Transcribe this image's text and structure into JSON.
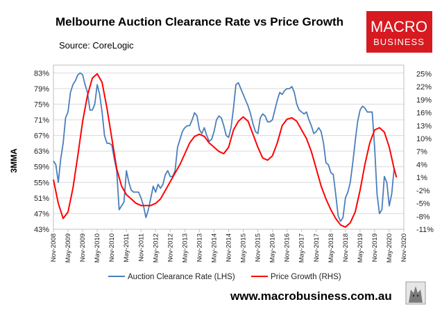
{
  "header": {
    "title": "Melbourne Auction Clearance Rate vs Price Growth",
    "source": "Source: CoreLogic",
    "logo_line1": "MACRO",
    "logo_line2": "BUSINESS",
    "logo_color": "#d71920"
  },
  "footer": {
    "url": "www.macrobusiness.com.au",
    "badge_icon": "wolf-icon"
  },
  "chart_data": {
    "type": "line",
    "ylabel": "3MMA",
    "y_left": {
      "range": [
        43,
        85
      ],
      "ticks": [
        "83%",
        "79%",
        "75%",
        "71%",
        "67%",
        "63%",
        "59%",
        "55%",
        "51%",
        "47%",
        "43%"
      ],
      "tick_values": [
        83,
        79,
        75,
        71,
        67,
        63,
        59,
        55,
        51,
        47,
        43
      ]
    },
    "y_right": {
      "range": [
        -11,
        27
      ],
      "ticks": [
        "25%",
        "22%",
        "19%",
        "16%",
        "13%",
        "10%",
        "7%",
        "4%",
        "1%",
        "-2%",
        "-5%",
        "-8%",
        "-11%"
      ],
      "tick_values": [
        25,
        22,
        19,
        16,
        13,
        10,
        7,
        4,
        1,
        -2,
        -5,
        -8,
        -11
      ]
    },
    "x_ticks": [
      "Nov-2008",
      "May-2009",
      "Nov-2009",
      "May-2010",
      "Nov-2010",
      "May-2011",
      "Nov-2011",
      "May-2012",
      "Nov-2012",
      "May-2013",
      "Nov-2013",
      "May-2014",
      "Nov-2014",
      "May-2015",
      "Nov-2015",
      "May-2016",
      "Nov-2016",
      "May-2017",
      "Nov-2017",
      "May-2018",
      "Nov-2018",
      "May-2019",
      "Nov-2019",
      "May-2020",
      "Nov-2020"
    ],
    "x_range": [
      0,
      144
    ],
    "series": [
      {
        "name": "Auction Clearance Rate (LHS)",
        "axis": "left",
        "color": "#4a7ebb",
        "points": [
          [
            0,
            60.5
          ],
          [
            1,
            59.5
          ],
          [
            2,
            55
          ],
          [
            3,
            61
          ],
          [
            4,
            65
          ],
          [
            5,
            71.5
          ],
          [
            6,
            73
          ],
          [
            7,
            78
          ],
          [
            8,
            80
          ],
          [
            9,
            81
          ],
          [
            10,
            82.5
          ],
          [
            11,
            83
          ],
          [
            12,
            82.5
          ],
          [
            13,
            80
          ],
          [
            14,
            78
          ],
          [
            15,
            73.5
          ],
          [
            16,
            73.5
          ],
          [
            17,
            75
          ],
          [
            18,
            80
          ],
          [
            19,
            77.5
          ],
          [
            20,
            73
          ],
          [
            21,
            67
          ],
          [
            22,
            65
          ],
          [
            23,
            65
          ],
          [
            24,
            64.5
          ],
          [
            25,
            61
          ],
          [
            26,
            58
          ],
          [
            27,
            48
          ],
          [
            28,
            49
          ],
          [
            29,
            50
          ],
          [
            30,
            58
          ],
          [
            31,
            55
          ],
          [
            32,
            53
          ],
          [
            33,
            52.5
          ],
          [
            34,
            52.5
          ],
          [
            35,
            52.5
          ],
          [
            36,
            51
          ],
          [
            37,
            49
          ],
          [
            38,
            46
          ],
          [
            39,
            48
          ],
          [
            40,
            51
          ],
          [
            41,
            54
          ],
          [
            42,
            52.5
          ],
          [
            43,
            54.5
          ],
          [
            44,
            53.5
          ],
          [
            45,
            54.5
          ],
          [
            46,
            57
          ],
          [
            47,
            58
          ],
          [
            48,
            56.5
          ],
          [
            49,
            56.5
          ],
          [
            50,
            58
          ],
          [
            51,
            64
          ],
          [
            52,
            66
          ],
          [
            53,
            68
          ],
          [
            54,
            69
          ],
          [
            55,
            69.5
          ],
          [
            56,
            69.5
          ],
          [
            57,
            71
          ],
          [
            58,
            72.8
          ],
          [
            59,
            72
          ],
          [
            60,
            68.5
          ],
          [
            61,
            67.5
          ],
          [
            62,
            69
          ],
          [
            63,
            67
          ],
          [
            64,
            65.5
          ],
          [
            65,
            66
          ],
          [
            66,
            68
          ],
          [
            67,
            71
          ],
          [
            68,
            72
          ],
          [
            69,
            71.5
          ],
          [
            70,
            69.5
          ],
          [
            71,
            67
          ],
          [
            72,
            66.5
          ],
          [
            73,
            69
          ],
          [
            74,
            74
          ],
          [
            75,
            80
          ],
          [
            76,
            80.5
          ],
          [
            77,
            79
          ],
          [
            78,
            77.5
          ],
          [
            79,
            76
          ],
          [
            80,
            74.5
          ],
          [
            81,
            72.5
          ],
          [
            82,
            70
          ],
          [
            83,
            68
          ],
          [
            84,
            67.5
          ],
          [
            85,
            71.5
          ],
          [
            86,
            72.5
          ],
          [
            87,
            72
          ],
          [
            88,
            70.5
          ],
          [
            89,
            70.5
          ],
          [
            90,
            71
          ],
          [
            91,
            73.5
          ],
          [
            92,
            76
          ],
          [
            93,
            78
          ],
          [
            94,
            77.5
          ],
          [
            95,
            78.5
          ],
          [
            96,
            79
          ],
          [
            97,
            79
          ],
          [
            98,
            79.5
          ],
          [
            99,
            78
          ],
          [
            100,
            75
          ],
          [
            101,
            73.5
          ],
          [
            102,
            73
          ],
          [
            103,
            72.5
          ],
          [
            104,
            73
          ],
          [
            105,
            71
          ],
          [
            106,
            69.5
          ],
          [
            107,
            67.5
          ],
          [
            108,
            68
          ],
          [
            109,
            69
          ],
          [
            110,
            68
          ],
          [
            111,
            65
          ],
          [
            112,
            60
          ],
          [
            113,
            59.5
          ],
          [
            114,
            57.5
          ],
          [
            115,
            57
          ],
          [
            116,
            52
          ],
          [
            117,
            46.5
          ],
          [
            118,
            45
          ],
          [
            119,
            46
          ],
          [
            120,
            51
          ],
          [
            121,
            52.5
          ],
          [
            122,
            55
          ],
          [
            123,
            60
          ],
          [
            124,
            65.5
          ],
          [
            125,
            70.5
          ],
          [
            126,
            73.5
          ],
          [
            127,
            74.5
          ],
          [
            128,
            74
          ],
          [
            129,
            73
          ],
          [
            130,
            73
          ],
          [
            131,
            73
          ],
          [
            132,
            64
          ],
          [
            133,
            52
          ],
          [
            134,
            47
          ],
          [
            135,
            48
          ],
          [
            136,
            56.5
          ],
          [
            137,
            55
          ],
          [
            138,
            49
          ],
          [
            139,
            52
          ],
          [
            140,
            58.5
          ]
        ]
      },
      {
        "name": "Price Growth (RHS)",
        "axis": "right",
        "color": "#ff0000",
        "points": [
          [
            0,
            0.5
          ],
          [
            2,
            -5
          ],
          [
            4,
            -8.5
          ],
          [
            6,
            -7
          ],
          [
            8,
            -1.5
          ],
          [
            10,
            6
          ],
          [
            12,
            14
          ],
          [
            14,
            20
          ],
          [
            16,
            24
          ],
          [
            18,
            25
          ],
          [
            20,
            23
          ],
          [
            22,
            17
          ],
          [
            24,
            10
          ],
          [
            26,
            3
          ],
          [
            28,
            -1
          ],
          [
            30,
            -3
          ],
          [
            32,
            -4
          ],
          [
            34,
            -5
          ],
          [
            36,
            -5.5
          ],
          [
            38,
            -5.5
          ],
          [
            40,
            -5.5
          ],
          [
            42,
            -5
          ],
          [
            44,
            -4
          ],
          [
            46,
            -2
          ],
          [
            48,
            0
          ],
          [
            50,
            2
          ],
          [
            52,
            4
          ],
          [
            54,
            6.5
          ],
          [
            56,
            9
          ],
          [
            58,
            10.5
          ],
          [
            60,
            11
          ],
          [
            62,
            10.5
          ],
          [
            64,
            9
          ],
          [
            66,
            8
          ],
          [
            68,
            7
          ],
          [
            70,
            6.5
          ],
          [
            72,
            8
          ],
          [
            74,
            12
          ],
          [
            76,
            14
          ],
          [
            78,
            15
          ],
          [
            80,
            14
          ],
          [
            82,
            11
          ],
          [
            84,
            8
          ],
          [
            86,
            5.5
          ],
          [
            88,
            5
          ],
          [
            90,
            6
          ],
          [
            92,
            9
          ],
          [
            94,
            13
          ],
          [
            96,
            14.5
          ],
          [
            98,
            14.8
          ],
          [
            100,
            14
          ],
          [
            102,
            12
          ],
          [
            104,
            10
          ],
          [
            106,
            7
          ],
          [
            108,
            3
          ],
          [
            110,
            -1
          ],
          [
            112,
            -4
          ],
          [
            114,
            -6.5
          ],
          [
            116,
            -8.5
          ],
          [
            118,
            -10
          ],
          [
            120,
            -10.5
          ],
          [
            122,
            -9.5
          ],
          [
            124,
            -7
          ],
          [
            126,
            -2
          ],
          [
            128,
            4
          ],
          [
            130,
            9
          ],
          [
            132,
            12
          ],
          [
            134,
            12.5
          ],
          [
            136,
            11.5
          ],
          [
            138,
            8
          ],
          [
            140,
            3
          ],
          [
            141,
            1
          ]
        ]
      }
    ],
    "legend": [
      "Auction Clearance Rate (LHS)",
      "Price Growth (RHS)"
    ],
    "legend_position": "bottom"
  }
}
